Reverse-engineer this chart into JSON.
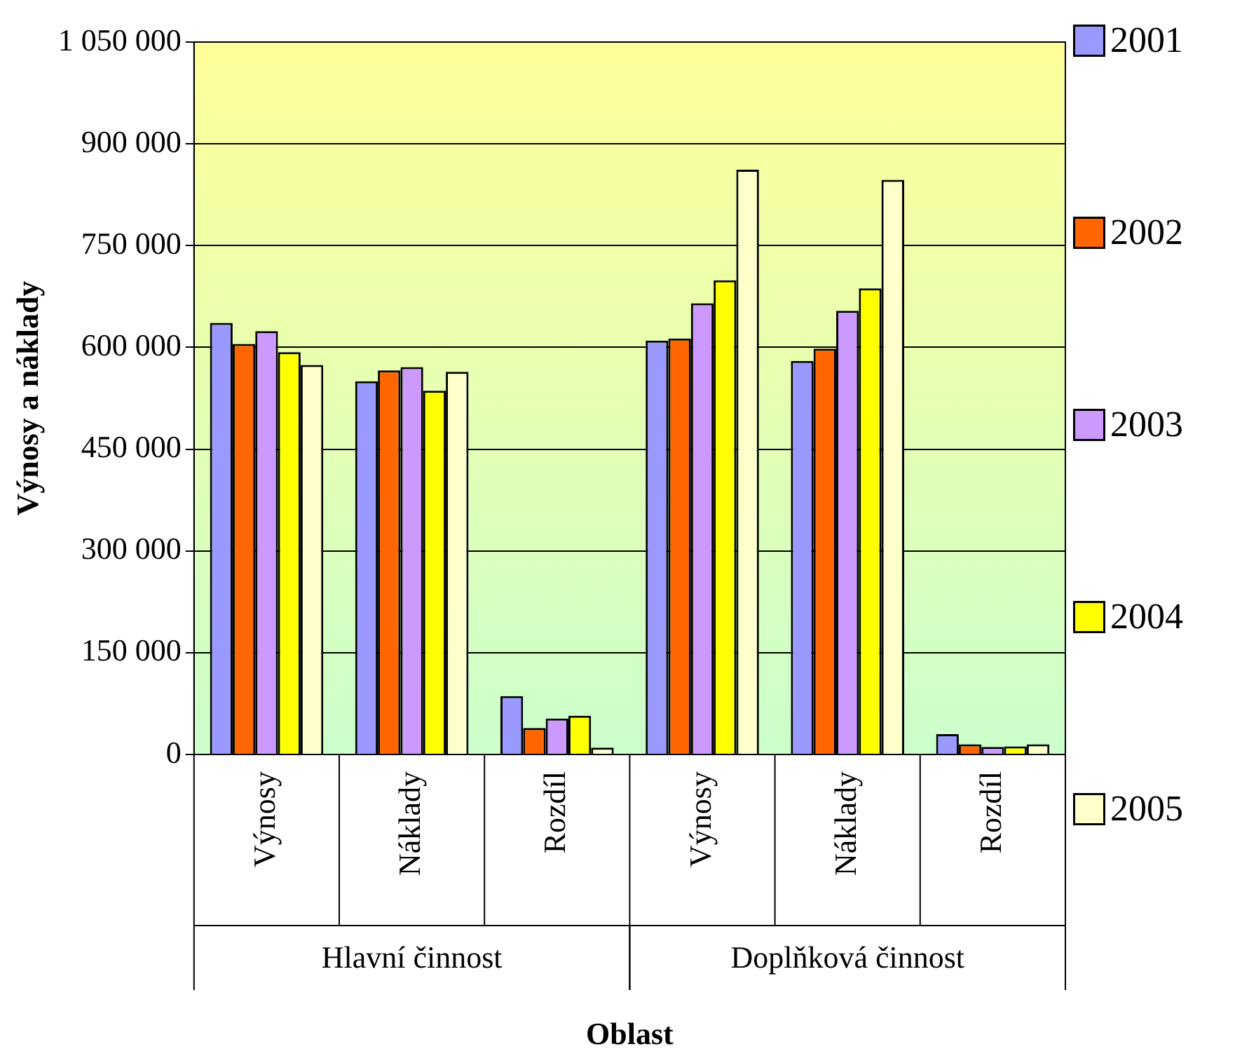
{
  "chart_data": {
    "type": "bar",
    "ylabel": "Výnosy a náklady",
    "xlabel": "Oblast",
    "categories": [
      "Výnosy",
      "Náklady",
      "Rozdíl",
      "Výnosy",
      "Náklady",
      "Rozdíl"
    ],
    "annotations": [
      "Hlavní činnost",
      "Doplňková činnost"
    ],
    "series": [
      {
        "name": "2001",
        "color": "#9999ff",
        "values": [
          636000,
          550000,
          86000,
          610000,
          580000,
          30000
        ]
      },
      {
        "name": "2002",
        "color": "#ff6600",
        "values": [
          605000,
          566000,
          39000,
          613000,
          598000,
          15000
        ]
      },
      {
        "name": "2003",
        "color": "#cc99ff",
        "values": [
          624000,
          571000,
          53000,
          665000,
          654000,
          11000
        ]
      },
      {
        "name": "2004",
        "color": "#ffff00",
        "values": [
          593000,
          536000,
          57000,
          699000,
          687000,
          12000
        ]
      },
      {
        "name": "2005",
        "color": "#ffffcc",
        "values": [
          574000,
          564000,
          10000,
          862000,
          847000,
          15000
        ]
      }
    ],
    "ylim": [
      0,
      1050000
    ],
    "yticks": [
      {
        "value": 0,
        "label": "0"
      },
      {
        "value": 150000,
        "label": "150 000"
      },
      {
        "value": 300000,
        "label": "300 000"
      },
      {
        "value": 450000,
        "label": "450 000"
      },
      {
        "value": 600000,
        "label": "600 000"
      },
      {
        "value": 750000,
        "label": "750 000"
      },
      {
        "value": 900000,
        "label": "900 000"
      },
      {
        "value": 1050000,
        "label": "1 050 000"
      }
    ],
    "grid": "y",
    "legend": "right"
  }
}
